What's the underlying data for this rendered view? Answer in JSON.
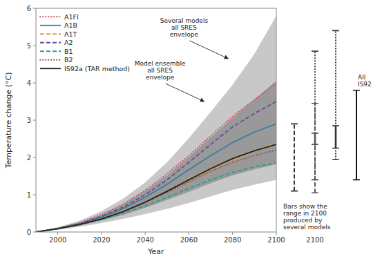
{
  "chart_data": {
    "type": "line",
    "xlabel": "Year",
    "ylabel": "Temperature change (°C)",
    "x": [
      1990,
      2000,
      2010,
      2020,
      2030,
      2040,
      2050,
      2060,
      2070,
      2080,
      2090,
      2100
    ],
    "xlim": [
      1990,
      2100
    ],
    "ylim": [
      0,
      6
    ],
    "xticks": [
      2000,
      2020,
      2040,
      2060,
      2080,
      2100
    ],
    "yticks": [
      0,
      1,
      2,
      3,
      4,
      5,
      6
    ],
    "grid": false,
    "legend": "upper left",
    "envelopes": [
      {
        "color": "#c8c8c8",
        "lower": [
          0,
          0.06,
          0.14,
          0.24,
          0.35,
          0.48,
          0.62,
          0.78,
          0.96,
          1.13,
          1.27,
          1.4
        ],
        "upper": [
          0,
          0.13,
          0.3,
          0.56,
          0.9,
          1.33,
          1.87,
          2.52,
          3.22,
          3.95,
          4.78,
          5.8
        ]
      },
      {
        "color": "#999999",
        "lower": [
          0,
          0.08,
          0.18,
          0.31,
          0.46,
          0.65,
          0.86,
          1.08,
          1.31,
          1.52,
          1.68,
          1.82
        ],
        "upper": [
          0,
          0.11,
          0.25,
          0.46,
          0.74,
          1.1,
          1.52,
          2.02,
          2.54,
          3.06,
          3.55,
          4.05
        ]
      }
    ],
    "series": [
      {
        "name": "A1FI",
        "color": "#d1495b",
        "line_style": "dotted",
        "values": [
          0,
          0.1,
          0.25,
          0.47,
          0.75,
          1.12,
          1.56,
          2.05,
          2.58,
          3.1,
          3.55,
          4.0
        ]
      },
      {
        "name": "A1B",
        "color": "#3a7ca5",
        "line_style": "solid",
        "values": [
          0,
          0.09,
          0.22,
          0.4,
          0.63,
          0.93,
          1.28,
          1.67,
          2.05,
          2.4,
          2.68,
          2.9
        ]
      },
      {
        "name": "A1T",
        "color": "#e09f3e",
        "line_style": "dashed",
        "values": [
          0,
          0.09,
          0.21,
          0.36,
          0.56,
          0.8,
          1.07,
          1.37,
          1.66,
          1.93,
          2.17,
          2.4
        ]
      },
      {
        "name": "A2",
        "color": "#6a4c93",
        "line_style": "dashed",
        "values": [
          0,
          0.09,
          0.22,
          0.42,
          0.67,
          1.0,
          1.4,
          1.87,
          2.35,
          2.82,
          3.18,
          3.5
        ]
      },
      {
        "name": "B1",
        "color": "#2a9d8f",
        "line_style": "dashed",
        "values": [
          0,
          0.08,
          0.19,
          0.33,
          0.5,
          0.7,
          0.93,
          1.17,
          1.4,
          1.6,
          1.75,
          1.85
        ]
      },
      {
        "name": "B2",
        "color": "#8c564b",
        "line_style": "dotted",
        "values": [
          0,
          0.09,
          0.2,
          0.36,
          0.55,
          0.79,
          1.06,
          1.35,
          1.63,
          1.87,
          2.05,
          2.2
        ]
      },
      {
        "name": "IS92a (TAR method)",
        "color": "#222222",
        "line_style": "solid",
        "values": [
          0,
          0.09,
          0.2,
          0.35,
          0.55,
          0.8,
          1.09,
          1.4,
          1.7,
          1.97,
          2.18,
          2.35
        ]
      }
    ],
    "annotations": [
      {
        "text": "Several models\nall SRES\nenvelope",
        "x": 2078,
        "y": 4.65
      },
      {
        "text": "Model ensemble\nall SRES\nenvelope",
        "x": 2067,
        "y": 3.5
      }
    ],
    "range_bars": {
      "year": 2100,
      "note": "Bars show the\nrange in 2100\nproduced by\nseveral models",
      "groups": [
        {
          "bars": [
            {
              "low": 1.1,
              "high": 2.9,
              "line_style": "dashed",
              "color": "#333333"
            }
          ]
        },
        {
          "bars": [
            {
              "low": 1.4,
              "high": 4.85,
              "line_style": "dotted",
              "color": "#444444"
            },
            {
              "low": 1.05,
              "high": 3.45,
              "line_style": "dashed",
              "color": "#555555"
            },
            {
              "low": 2.35,
              "high": 2.65,
              "line_style": "solid",
              "color": "#555555"
            }
          ]
        },
        {
          "bars": [
            {
              "low": 1.95,
              "high": 5.4,
              "line_style": "dotted",
              "color": "#333333"
            },
            {
              "low": 2.25,
              "high": 2.85,
              "line_style": "solid",
              "color": "#333333"
            }
          ]
        },
        {
          "label": "All\nIS92",
          "bars": [
            {
              "low": 1.4,
              "high": 3.8,
              "line_style": "solid",
              "color": "#111111"
            }
          ]
        }
      ]
    }
  }
}
